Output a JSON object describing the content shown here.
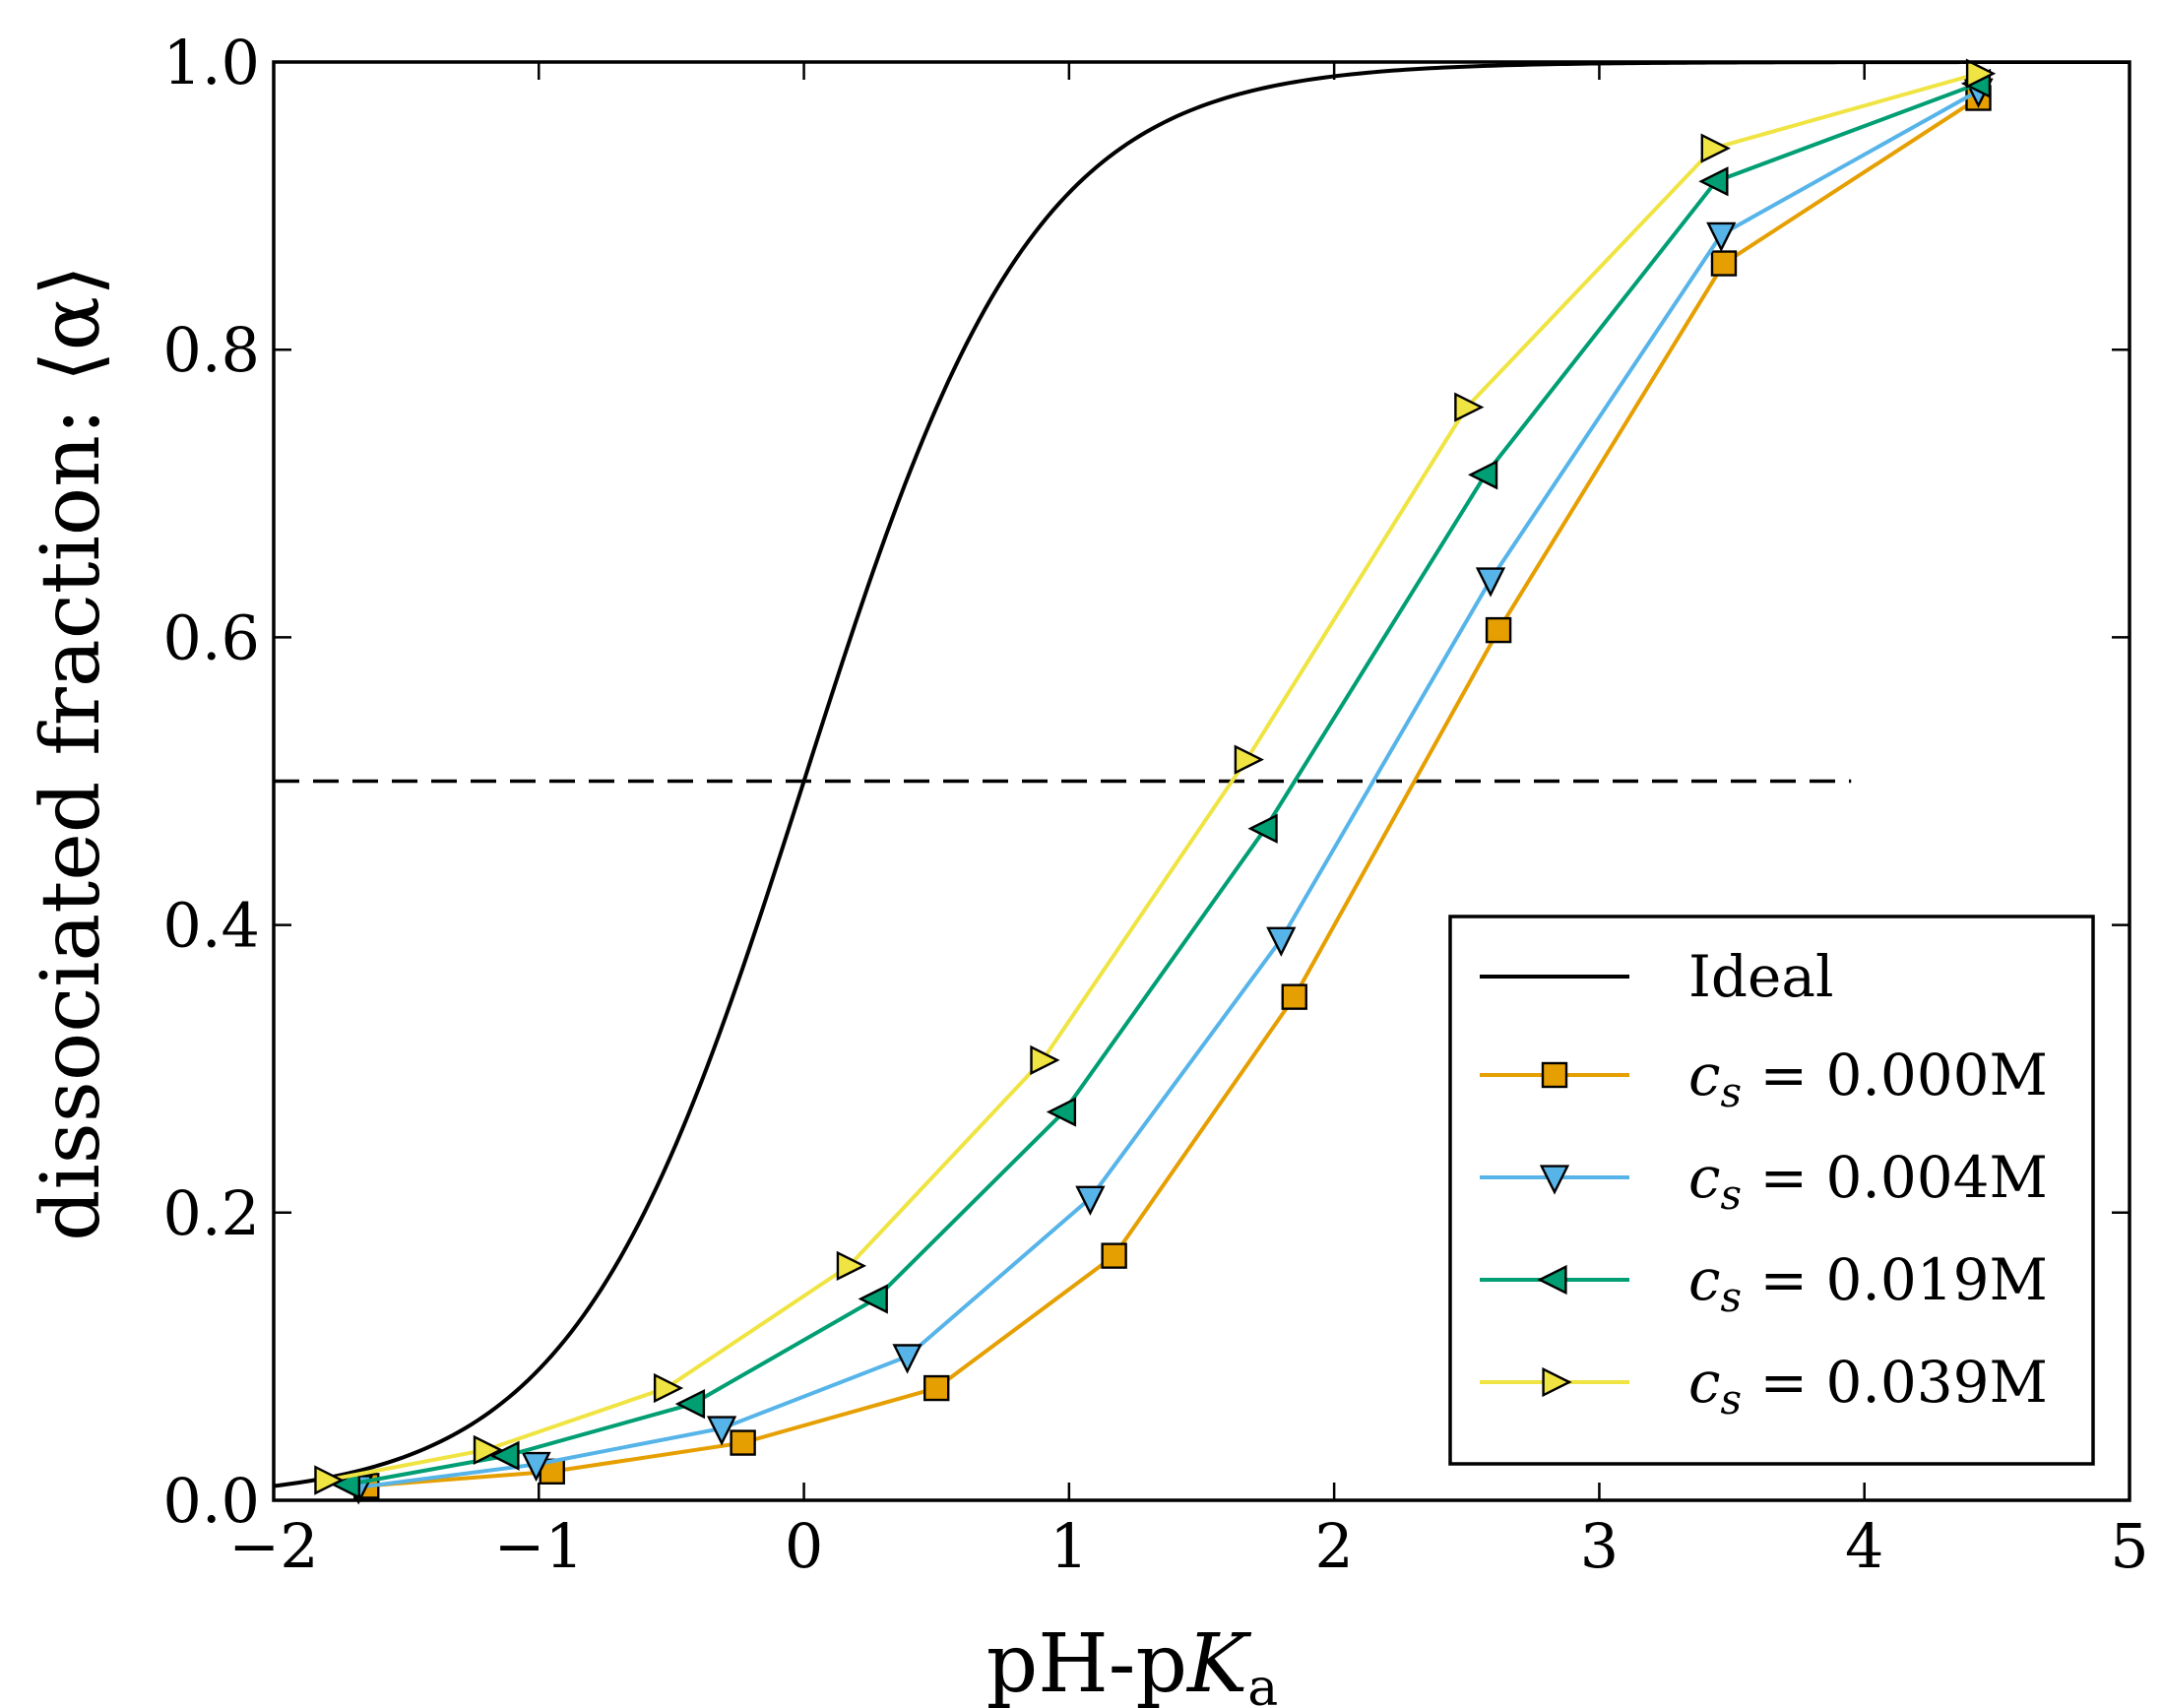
{
  "chart_data": {
    "type": "line",
    "xlabel": {
      "base": "pH-p",
      "italic": "K",
      "sub": "a"
    },
    "ylabel": "dissociated fraction: ⟨α⟩",
    "xlim": [
      -2,
      5
    ],
    "ylim": [
      0.0,
      1.0
    ],
    "x_ticks": [
      -2,
      -1,
      0,
      1,
      2,
      3,
      4,
      5
    ],
    "x_tick_labels": [
      "−2",
      "−1",
      "0",
      "1",
      "2",
      "3",
      "4",
      "5"
    ],
    "y_ticks": [
      0.0,
      0.2,
      0.4,
      0.6,
      0.8,
      1.0
    ],
    "y_tick_labels": [
      "0.0",
      "0.2",
      "0.4",
      "0.6",
      "0.8",
      "1.0"
    ],
    "grid": false,
    "legend_position": "lower-right",
    "reference_line": {
      "y": 0.5,
      "x_range": [
        -2,
        3.95
      ],
      "style": "dashed",
      "color": "#000000"
    },
    "ideal": {
      "name": "Ideal",
      "color": "#000000",
      "x_range": [
        -2,
        5
      ]
    },
    "series": [
      {
        "name": "c_s = 0.000M",
        "legend_parts": {
          "var": "c",
          "sub": "s",
          "value": " = 0.000M"
        },
        "color": "#E69F00",
        "marker": "square",
        "x": [
          -1.65,
          -0.95,
          -0.23,
          0.5,
          1.17,
          1.85,
          2.62,
          3.47,
          4.43
        ],
        "y": [
          0.01,
          0.02,
          0.04,
          0.078,
          0.17,
          0.35,
          0.605,
          0.86,
          0.975
        ]
      },
      {
        "name": "c_s = 0.004M",
        "legend_parts": {
          "var": "c",
          "sub": "s",
          "value": " = 0.004M"
        },
        "color": "#56B4E9",
        "marker": "triangle-down",
        "x": [
          -1.68,
          -1.01,
          -0.31,
          0.39,
          1.08,
          1.8,
          2.59,
          3.46,
          4.43
        ],
        "y": [
          0.009,
          0.025,
          0.05,
          0.1,
          0.21,
          0.39,
          0.64,
          0.88,
          0.98
        ]
      },
      {
        "name": "c_s = 0.019M",
        "legend_parts": {
          "var": "c",
          "sub": "s",
          "value": " = 0.019M"
        },
        "color": "#009E73",
        "marker": "triangle-left",
        "x": [
          -1.72,
          -1.12,
          -0.42,
          0.27,
          0.98,
          1.74,
          2.57,
          3.44,
          4.43
        ],
        "y": [
          0.011,
          0.031,
          0.067,
          0.14,
          0.27,
          0.467,
          0.713,
          0.917,
          0.985
        ]
      },
      {
        "name": "c_s = 0.039M",
        "legend_parts": {
          "var": "c",
          "sub": "s",
          "value": " = 0.039M"
        },
        "color": "#F0E442",
        "marker": "triangle-right",
        "x": [
          -1.8,
          -1.2,
          -0.52,
          0.17,
          0.9,
          1.67,
          2.5,
          3.43,
          4.43
        ],
        "y": [
          0.014,
          0.035,
          0.078,
          0.163,
          0.306,
          0.515,
          0.76,
          0.94,
          0.992
        ]
      }
    ]
  }
}
